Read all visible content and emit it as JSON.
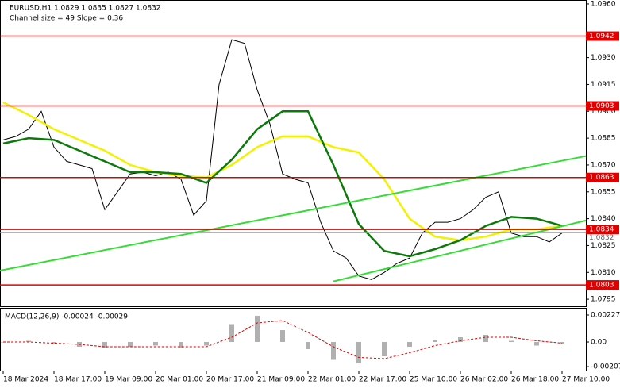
{
  "chart_data": [
    {
      "type": "price",
      "title": "EURUSD,H1  1.0829 1.0835 1.0827 1.0832",
      "subtitle": "Channel size = 49 Slope = 0.36",
      "xlim": [
        -1,
        183.5
      ],
      "ylim": [
        1.07915,
        1.09622
      ],
      "xticks": [
        {
          "value": 0,
          "label": "18 Mar 2024"
        },
        {
          "value": 16,
          "label": "18 Mar 17:00"
        },
        {
          "value": 32,
          "label": "19 Mar 09:00"
        },
        {
          "value": 48,
          "label": "20 Mar 01:00"
        },
        {
          "value": 64,
          "label": "20 Mar 17:00"
        },
        {
          "value": 80,
          "label": "21 Mar 09:00"
        },
        {
          "value": 96,
          "label": "22 Mar 01:00"
        },
        {
          "value": 112,
          "label": "22 Mar 17:00"
        },
        {
          "value": 128,
          "label": "25 Mar 10:00"
        },
        {
          "value": 144,
          "label": "26 Mar 02:00"
        },
        {
          "value": 160,
          "label": "26 Mar 18:00"
        },
        {
          "value": 176,
          "label": "27 Mar 10:00"
        }
      ],
      "yticks": [
        {
          "value": 1.096,
          "label": "1.0960"
        },
        {
          "value": 1.093,
          "label": "1.0930"
        },
        1.0915,
        {
          "value": 1.09,
          "label": "1.0900"
        },
        1.0885,
        {
          "value": 1.087,
          "label": "1.0870"
        },
        1.0855,
        {
          "value": 1.084,
          "label": "1.0840"
        },
        1.0825,
        {
          "value": 1.081,
          "label": "1.0810"
        },
        1.0795
      ],
      "levels": [
        1.0942,
        1.0903,
        1.0863,
        1.0834,
        1.0803
      ],
      "level_color": "#e00000",
      "current_price": 1.0832,
      "series": [
        {
          "name": "close",
          "color": "#000000",
          "x": [
            0,
            4,
            8,
            12,
            16,
            20,
            24,
            28,
            32,
            36,
            40,
            44,
            48,
            52,
            56,
            60,
            64,
            68,
            72,
            76,
            80,
            84,
            88,
            92,
            96,
            100,
            104,
            108,
            112,
            116,
            120,
            124,
            128,
            132,
            136,
            140,
            144,
            148,
            152,
            156,
            160,
            164,
            168,
            172,
            176
          ],
          "values": [
            1.0884,
            1.0886,
            1.089,
            1.09,
            1.088,
            1.0872,
            1.087,
            1.0868,
            1.0845,
            1.0855,
            1.0865,
            1.0866,
            1.0864,
            1.0866,
            1.0862,
            1.0842,
            1.085,
            1.0915,
            1.094,
            1.0938,
            1.0912,
            1.0893,
            1.0865,
            1.0862,
            1.086,
            1.0838,
            1.0822,
            1.0818,
            1.0808,
            1.0806,
            1.081,
            1.0815,
            1.0818,
            1.0832,
            1.0838,
            1.0838,
            1.084,
            1.0845,
            1.0852,
            1.0855,
            1.0832,
            1.083,
            1.083,
            1.0827,
            1.0832
          ]
        },
        {
          "name": "ma-slow",
          "color": "#f2f200",
          "x": [
            0,
            8,
            16,
            24,
            32,
            40,
            48,
            56,
            64,
            72,
            80,
            88,
            96,
            104,
            112,
            120,
            128,
            136,
            144,
            152,
            160,
            168,
            176
          ],
          "values": [
            1.0905,
            1.0898,
            1.089,
            1.0884,
            1.0878,
            1.087,
            1.0866,
            1.0864,
            1.0863,
            1.087,
            1.088,
            1.0886,
            1.0886,
            1.088,
            1.0877,
            1.0862,
            1.084,
            1.083,
            1.0828,
            1.083,
            1.0834,
            1.0834,
            1.0836
          ]
        },
        {
          "name": "ma-fast",
          "color": "#0b7a0b",
          "x": [
            0,
            8,
            16,
            24,
            32,
            40,
            48,
            56,
            64,
            72,
            80,
            88,
            96,
            104,
            112,
            120,
            128,
            136,
            144,
            152,
            160,
            168,
            176
          ],
          "values": [
            1.0882,
            1.0885,
            1.0884,
            1.0878,
            1.0872,
            1.0866,
            1.0866,
            1.0865,
            1.086,
            1.0873,
            1.089,
            1.09,
            1.09,
            1.087,
            1.0837,
            1.0822,
            1.0819,
            1.0823,
            1.0828,
            1.0836,
            1.0841,
            1.084,
            1.0836
          ]
        },
        {
          "name": "channel-upper",
          "color": "#33dd33",
          "x": [
            -1,
            183.5
          ],
          "values": [
            1.0811,
            1.0875
          ]
        },
        {
          "name": "channel-lower",
          "color": "#33dd33",
          "x": [
            104,
            183.5
          ],
          "values": [
            1.0805,
            1.0839
          ]
        }
      ]
    },
    {
      "type": "macd",
      "title": "MACD(12,26,9) -0.00024 -0.00029",
      "xlim": [
        -1,
        183.5
      ],
      "ylim": [
        -0.0024,
        0.00287
      ],
      "yticks": [
        0.00227,
        {
          "value": 0,
          "label": "0.00"
        },
        -0.00207
      ],
      "x": [
        0,
        8,
        16,
        24,
        32,
        40,
        48,
        56,
        64,
        72,
        80,
        88,
        96,
        104,
        112,
        120,
        128,
        136,
        144,
        152,
        160,
        168,
        176
      ],
      "histogram": {
        "color": "#b0b0b0",
        "values": [
          0,
          0.0001,
          -0.0002,
          -0.0004,
          -0.0005,
          -0.0004,
          -0.0003,
          -0.0005,
          -0.0003,
          0.0015,
          0.0022,
          0.001,
          -0.0006,
          -0.0015,
          -0.0018,
          -0.0012,
          -0.0004,
          0.0002,
          0.0004,
          0.0006,
          0.0001,
          -0.0003,
          -0.0002
        ]
      },
      "signal": {
        "color": "#e00000",
        "values": [
          0,
          0,
          -0.0001,
          -0.0002,
          -0.0004,
          -0.0004,
          -0.0004,
          -0.0004,
          -0.0004,
          0.0004,
          0.0016,
          0.0018,
          0.0008,
          -0.0004,
          -0.0013,
          -0.0014,
          -0.0009,
          -0.0003,
          0.0001,
          0.0004,
          0.0004,
          0.0001,
          -0.0001
        ]
      }
    }
  ]
}
